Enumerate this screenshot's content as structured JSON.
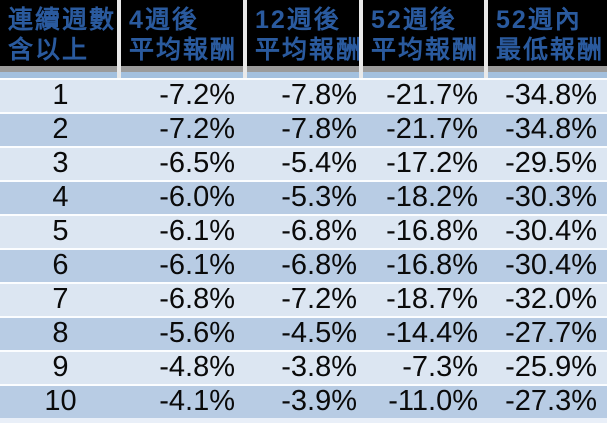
{
  "chart_data": {
    "type": "table",
    "columns": [
      {
        "line1": "連續週數",
        "line2": "含以上"
      },
      {
        "line1": "4週後",
        "line2": "平均報酬"
      },
      {
        "line1": "12週後",
        "line2": "平均報酬"
      },
      {
        "line1": "52週後",
        "line2": "平均報酬"
      },
      {
        "line1": "52週內",
        "line2": "最低報酬"
      }
    ],
    "rows": [
      {
        "week": "1",
        "values": [
          "-7.2%",
          "-7.8%",
          "-21.7%",
          "-34.8%"
        ]
      },
      {
        "week": "2",
        "values": [
          "-7.2%",
          "-7.8%",
          "-21.7%",
          "-34.8%"
        ]
      },
      {
        "week": "3",
        "values": [
          "-6.5%",
          "-5.4%",
          "-17.2%",
          "-29.5%"
        ]
      },
      {
        "week": "4",
        "values": [
          "-6.0%",
          "-5.3%",
          "-18.2%",
          "-30.3%"
        ]
      },
      {
        "week": "5",
        "values": [
          "-6.1%",
          "-6.8%",
          "-16.8%",
          "-30.4%"
        ]
      },
      {
        "week": "6",
        "values": [
          "-6.1%",
          "-6.8%",
          "-16.8%",
          "-30.4%"
        ]
      },
      {
        "week": "7",
        "values": [
          "-6.8%",
          "-7.2%",
          "-18.7%",
          "-32.0%"
        ]
      },
      {
        "week": "8",
        "values": [
          "-5.6%",
          "-4.5%",
          "-14.4%",
          "-27.7%"
        ]
      },
      {
        "week": "9",
        "values": [
          "-4.8%",
          "-3.8%",
          "-7.3%",
          "-25.9%"
        ]
      },
      {
        "week": "10",
        "values": [
          "-4.1%",
          "-3.9%",
          "-11.0%",
          "-27.3%"
        ]
      }
    ],
    "layout_hints": {
      "header_background": "#000000",
      "header_text_color": "#2a5a9e",
      "header_gray_band": "#9b9b9b",
      "header_blue_band": "#a3c0de",
      "row_stripe_light": "#dce6f2",
      "row_stripe_dark": "#b8cce4",
      "row_separator": "#fbfdff",
      "value_text_color": "#0a0a0a"
    }
  }
}
